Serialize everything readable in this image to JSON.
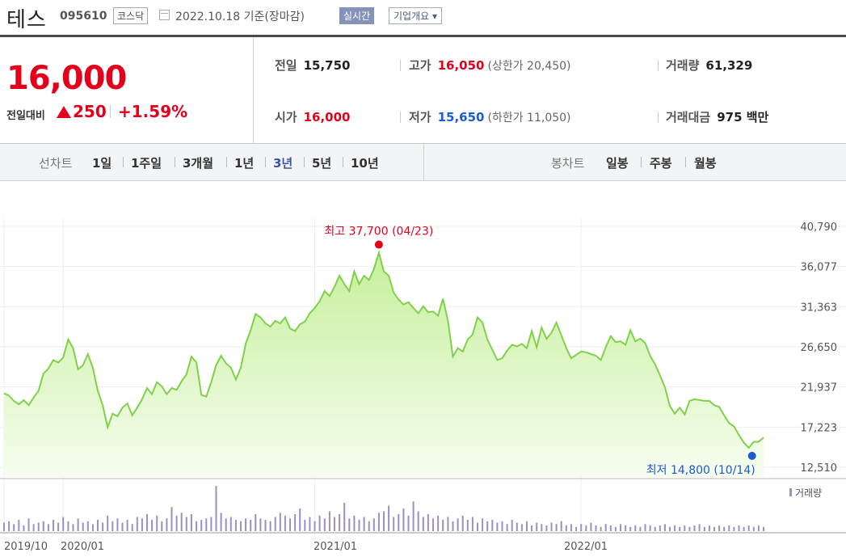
{
  "header": {
    "name": "테스",
    "code": "095610",
    "market": "코스닥",
    "date_text": "2022.10.18 기준(장마감)",
    "live_button": "실시간",
    "corp_button": "기업개요 ▾"
  },
  "summary": {
    "price": "16,000",
    "change_label": "전일대비",
    "change_value": "250",
    "change_pct": "+1.59%",
    "prev_label": "전일",
    "prev_value": "15,750",
    "open_label": "시가",
    "open_value": "16,000",
    "high_label": "고가",
    "high_value": "16,050",
    "upper_limit": "(상한가 20,450)",
    "low_label": "저가",
    "low_value": "15,650",
    "lower_limit": "(하한가 11,050)",
    "volume_label": "거래량",
    "volume_value": "61,329",
    "amount_label": "거래대금",
    "amount_value": "975 백만"
  },
  "period_bar": {
    "line_label": "선차트",
    "line_items": [
      "1일",
      "1주일",
      "3개월",
      "1년",
      "3년",
      "5년",
      "10년"
    ],
    "active": "3년",
    "candle_label": "봉차트",
    "candle_items": [
      "일봉",
      "주봉",
      "월봉"
    ]
  },
  "chart_data": {
    "type": "area",
    "ylim": [
      12510,
      40790
    ],
    "y_ticks": [
      "40,790",
      "36,077",
      "31,363",
      "26,650",
      "21,937",
      "17,223",
      "12,510"
    ],
    "x_ticks": [
      "2019/10",
      "2020/01",
      "2021/01",
      "2022/01"
    ],
    "high_annotation": "최고 37,700 (04/23)",
    "low_annotation": "최저 14,800 (10/14)",
    "volume_label": "거래량",
    "colors": {
      "line": "#7fd14a",
      "fill_top": "#c6ef9c",
      "fill_bottom": "#f6fdef",
      "volume": "#9b8fc7",
      "high": "#e3001b",
      "low": "#1d5bd3"
    },
    "price_series": [
      21200,
      20900,
      20300,
      19900,
      20400,
      19800,
      20700,
      21500,
      23500,
      24100,
      25100,
      24800,
      25400,
      27500,
      26500,
      24000,
      24500,
      25800,
      24200,
      21500,
      19800,
      17200,
      18800,
      18500,
      19500,
      20000,
      18600,
      19500,
      20500,
      21800,
      21100,
      22500,
      22000,
      21100,
      21800,
      21600,
      22600,
      23400,
      25500,
      24800,
      21000,
      20800,
      22500,
      24500,
      25600,
      24700,
      24200,
      22800,
      24200,
      27000,
      28600,
      30500,
      30100,
      29400,
      29000,
      29700,
      29400,
      30100,
      28800,
      28500,
      29300,
      29600,
      30600,
      31200,
      32000,
      33200,
      32600,
      33700,
      35000,
      34000,
      33200,
      35500,
      34000,
      35000,
      34500,
      35800,
      37700,
      35500,
      35000,
      33000,
      32200,
      31600,
      31900,
      31200,
      30600,
      31400,
      30700,
      30800,
      30300,
      32300,
      29700,
      25500,
      26500,
      26100,
      27500,
      28100,
      30100,
      29500,
      27500,
      26300,
      25100,
      25300,
      26200,
      26900,
      26700,
      27000,
      26500,
      28500,
      26600,
      28900,
      27600,
      28300,
      29500,
      28000,
      26500,
      25300,
      25700,
      26100,
      26000,
      25800,
      25600,
      25100,
      26600,
      27900,
      27200,
      27300,
      26900,
      28600,
      27300,
      27600,
      27100,
      25600,
      24600,
      23300,
      21900,
      19700,
      18800,
      19500,
      18700,
      20300,
      20500,
      20400,
      20300,
      20300,
      19800,
      19600,
      18600,
      17700,
      17300,
      16300,
      15400,
      14800,
      15500,
      15500,
      16000
    ],
    "volume_series": [
      6,
      7,
      5,
      8,
      4,
      9,
      5,
      6,
      7,
      5,
      8,
      6,
      10,
      7,
      5,
      9,
      6,
      7,
      5,
      8,
      6,
      11,
      7,
      9,
      6,
      8,
      5,
      10,
      9,
      12,
      8,
      11,
      7,
      9,
      17,
      11,
      13,
      10,
      12,
      7,
      8,
      9,
      10,
      32,
      13,
      9,
      10,
      8,
      7,
      9,
      8,
      12,
      9,
      8,
      7,
      10,
      13,
      11,
      9,
      12,
      16,
      8,
      10,
      7,
      11,
      9,
      14,
      10,
      12,
      20,
      9,
      11,
      8,
      10,
      7,
      9,
      13,
      14,
      18,
      10,
      12,
      16,
      11,
      21,
      14,
      10,
      12,
      9,
      11,
      8,
      10,
      7,
      9,
      11,
      8,
      10,
      6,
      9,
      7,
      8,
      6,
      7,
      5,
      8,
      6,
      5,
      7,
      4,
      6,
      5,
      4,
      6,
      5,
      7,
      4,
      5,
      3,
      5,
      4,
      6,
      4,
      3,
      5,
      4,
      3,
      5,
      4,
      3,
      4,
      3,
      5,
      4,
      3,
      4,
      5,
      3,
      4,
      3,
      4,
      3,
      4,
      5,
      3,
      4,
      3,
      4,
      3,
      4,
      3,
      4,
      3,
      4,
      3,
      4,
      3
    ]
  }
}
